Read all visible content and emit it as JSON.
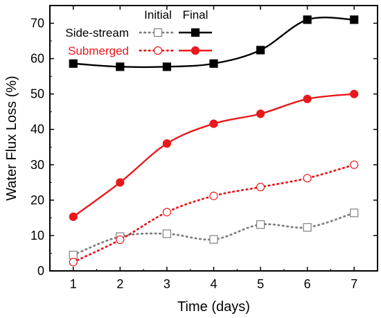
{
  "chart_data": {
    "type": "line",
    "title": "",
    "xlabel": "Time (days)",
    "ylabel": "Water Flux Loss (%)",
    "xlim": [
      0.5,
      7.5
    ],
    "ylim": [
      0,
      75
    ],
    "xticks": [
      1,
      2,
      3,
      4,
      5,
      6,
      7
    ],
    "yticks": [
      0,
      10,
      20,
      30,
      40,
      50,
      60,
      70
    ],
    "grid": false,
    "legend": {
      "placement": "top-left",
      "column_headers": [
        "Initial",
        "Final"
      ],
      "rows": [
        "Side-stream",
        "Submerged"
      ]
    },
    "x": [
      1,
      2,
      3,
      4,
      5,
      6,
      7
    ],
    "series": [
      {
        "name": "Side-stream",
        "stage": "Initial",
        "color": "#808080",
        "marker": "open-square",
        "line": "dotted",
        "values": [
          4.5,
          9.7,
          10.5,
          8.9,
          13.1,
          12.3,
          16.4
        ]
      },
      {
        "name": "Side-stream",
        "stage": "Final",
        "color": "#000000",
        "marker": "filled-square",
        "line": "solid",
        "values": [
          58.6,
          57.7,
          57.7,
          58.6,
          62.4,
          71.0,
          71.0
        ]
      },
      {
        "name": "Submerged",
        "stage": "Initial",
        "color": "#e8191c",
        "marker": "open-circle",
        "line": "dotted",
        "values": [
          2.5,
          8.8,
          16.6,
          21.2,
          23.7,
          26.2,
          30.0
        ]
      },
      {
        "name": "Submerged",
        "stage": "Final",
        "color": "#e8191c",
        "marker": "filled-circle",
        "line": "solid",
        "values": [
          15.3,
          25.0,
          36.0,
          41.6,
          44.4,
          48.6,
          50.0
        ]
      }
    ]
  }
}
